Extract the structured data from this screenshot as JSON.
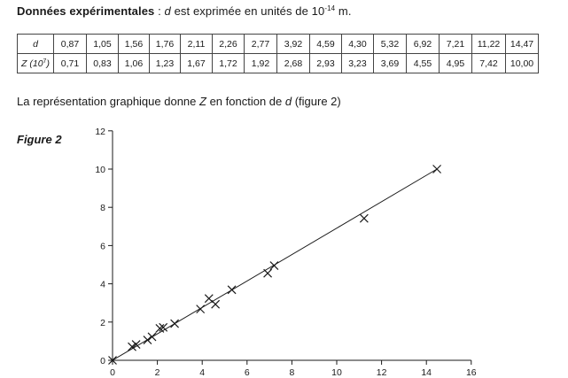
{
  "heading": {
    "bold": "Données expérimentales",
    "colon": " : ",
    "var": "d",
    "text": " est exprimée en unités de 10",
    "exp": "-14",
    "unit": " m."
  },
  "table": {
    "row1_label": "d",
    "row2_label_pre": "Z (10",
    "row2_label_exp": "7",
    "row2_label_post": ")",
    "d_values": [
      "0,87",
      "1,05",
      "1,56",
      "1,76",
      "2,11",
      "2,26",
      "2,77",
      "3,92",
      "4,59",
      "4,30",
      "5,32",
      "6,92",
      "7,21",
      "11,22",
      "14,47"
    ],
    "z_values": [
      "0,71",
      "0,83",
      "1,06",
      "1,23",
      "1,67",
      "1,72",
      "1,92",
      "2,68",
      "2,93",
      "3,23",
      "3,69",
      "4,55",
      "4,95",
      "7,42",
      "10,00"
    ]
  },
  "caption": {
    "pre": "La représentation graphique donne ",
    "var1": "Z",
    "mid": " en fonction de ",
    "var2": "d",
    "post": " (figure 2)"
  },
  "figure_label": "Figure 2",
  "chart_data": {
    "type": "scatter",
    "x_ticks": [
      0,
      2,
      4,
      6,
      8,
      10,
      12,
      14,
      16
    ],
    "y_ticks": [
      0,
      2,
      4,
      6,
      8,
      10,
      12
    ],
    "xlim": [
      0,
      16
    ],
    "ylim": [
      0,
      12
    ],
    "grid": false,
    "points": [
      {
        "x": 0,
        "y": 0
      },
      {
        "x": 0.87,
        "y": 0.71
      },
      {
        "x": 1.05,
        "y": 0.83
      },
      {
        "x": 1.56,
        "y": 1.06
      },
      {
        "x": 1.76,
        "y": 1.23
      },
      {
        "x": 2.11,
        "y": 1.67
      },
      {
        "x": 2.26,
        "y": 1.72
      },
      {
        "x": 2.77,
        "y": 1.92
      },
      {
        "x": 3.92,
        "y": 2.68
      },
      {
        "x": 4.59,
        "y": 2.93
      },
      {
        "x": 4.3,
        "y": 3.23
      },
      {
        "x": 5.32,
        "y": 3.69
      },
      {
        "x": 6.92,
        "y": 4.55
      },
      {
        "x": 7.21,
        "y": 4.95
      },
      {
        "x": 11.22,
        "y": 7.42
      },
      {
        "x": 14.47,
        "y": 10.0
      }
    ],
    "fit_line": {
      "x0": 0,
      "y0": 0,
      "x1": 14.47,
      "y1": 10.0
    }
  }
}
